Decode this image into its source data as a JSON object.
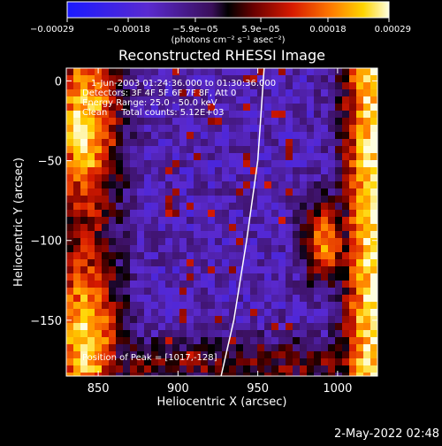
{
  "chart_data": {
    "type": "heatmap",
    "title": "Reconstructed RHESSI Image",
    "xlabel": "Heliocentric X (arcsec)",
    "ylabel": "Heliocentric Y (arcsec)",
    "xlim": [
      830,
      1025
    ],
    "ylim": [
      -185,
      8
    ],
    "xticks": [
      850,
      900,
      950,
      1000
    ],
    "yticks": [
      0,
      -50,
      -100,
      -150
    ],
    "xtick_labels": [
      "850",
      "900",
      "950",
      "1000"
    ],
    "ytick_labels": [
      "0",
      "−50",
      "−100",
      "−150"
    ],
    "colorbar": {
      "min": -0.00029,
      "max": 0.00029,
      "tick_values": [
        -0.00029,
        -0.00018,
        -5.9e-05,
        5.9e-05,
        0.00018,
        0.00029
      ],
      "tick_labels": [
        "−0.00029",
        "−0.00018",
        "−5.9e−05",
        "5.9e−05",
        "0.00018",
        "0.00029"
      ],
      "units_label": "(photons cm⁻² s⁻¹ asec⁻²)"
    },
    "annotations": [
      "1-Jun-2003 01:24:36.000 to 01:30:36.000",
      "Detectors: 3F 4F 5F 6F 7F 8F, Att 0",
      "Energy Range: 25.0 - 50.0 keV",
      "Clean     Total counts: 5.12E+03",
      "Position of Peak = [1017,-128]"
    ],
    "limb_points": [
      [
        954,
        8
      ],
      [
        950,
        -50
      ],
      [
        943,
        -100
      ],
      [
        935,
        -150
      ],
      [
        927,
        -185
      ]
    ],
    "grid": false
  },
  "footer": {
    "timestamp": "2-May-2022 02:48"
  }
}
